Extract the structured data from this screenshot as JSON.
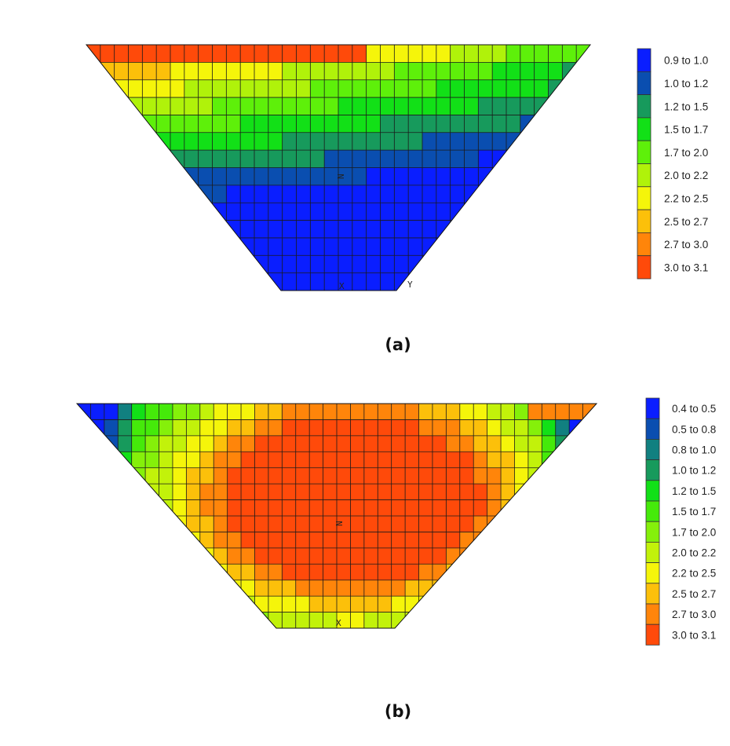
{
  "panels": [
    {
      "id": "a",
      "caption": "(a)",
      "axis_labels": [
        "N",
        "X",
        "Y"
      ],
      "legend": [
        {
          "label": "0.9 to 1.0",
          "color": "#0a1eff"
        },
        {
          "label": "1.0 to 1.2",
          "color": "#0a4eb0"
        },
        {
          "label": "1.2 to 1.5",
          "color": "#179a5c"
        },
        {
          "label": "1.5 to 1.7",
          "color": "#12e017"
        },
        {
          "label": "1.7 to 2.0",
          "color": "#5ef00a"
        },
        {
          "label": "2.0 to 2.2",
          "color": "#b0f20a"
        },
        {
          "label": "2.2 to 2.5",
          "color": "#f5f50a"
        },
        {
          "label": "2.5 to 2.7",
          "color": "#fcc00a"
        },
        {
          "label": "2.7 to 3.0",
          "color": "#ff850a"
        },
        {
          "label": "3.0 to 3.1",
          "color": "#ff4a0a"
        }
      ]
    },
    {
      "id": "b",
      "caption": "(b)",
      "axis_labels": [
        "N",
        "X"
      ],
      "legend": [
        {
          "label": "0.4 to 0.5",
          "color": "#0a1eff"
        },
        {
          "label": "0.5 to 0.8",
          "color": "#0a4eb0"
        },
        {
          "label": "0.8 to 1.0",
          "color": "#118080"
        },
        {
          "label": "1.0 to 1.2",
          "color": "#179a5c"
        },
        {
          "label": "1.2 to 1.5",
          "color": "#12e017"
        },
        {
          "label": "1.5 to 1.7",
          "color": "#45ea0a"
        },
        {
          "label": "1.7 to 2.0",
          "color": "#85f00a"
        },
        {
          "label": "2.0 to 2.2",
          "color": "#c2f20a"
        },
        {
          "label": "2.2 to 2.5",
          "color": "#f5f50a"
        },
        {
          "label": "2.5 to 2.7",
          "color": "#fcc00a"
        },
        {
          "label": "2.7 to 3.0",
          "color": "#ff850a"
        },
        {
          "label": "3.0 to 3.1",
          "color": "#ff4a0a"
        }
      ]
    }
  ]
}
